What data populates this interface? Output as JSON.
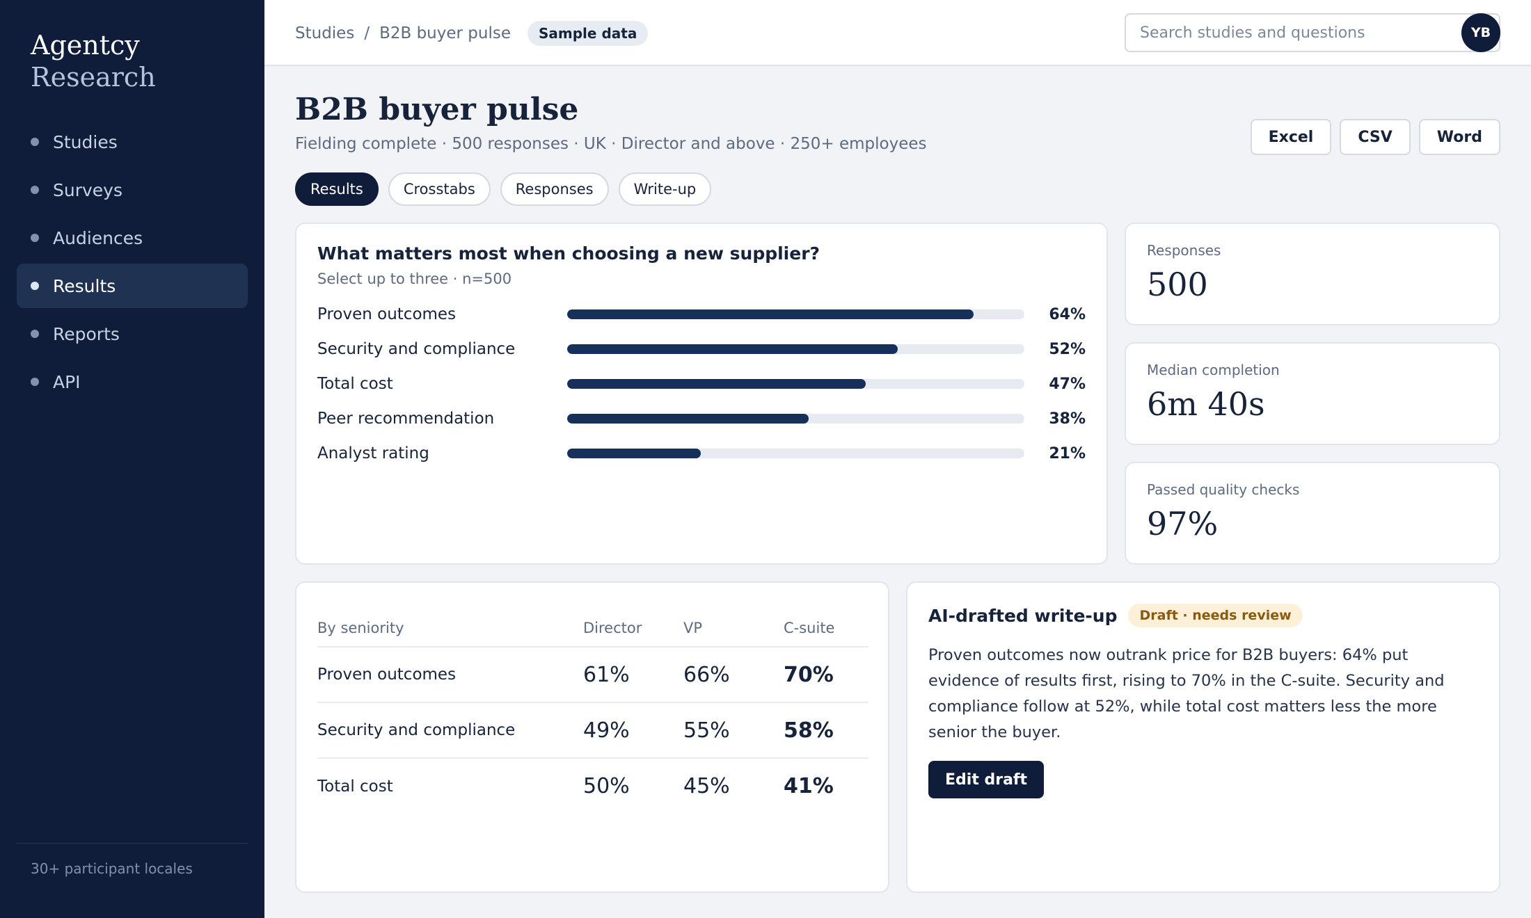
{
  "brand": {
    "line1": "Agentcy",
    "line2": "Research"
  },
  "sidebar": {
    "items": [
      {
        "label": "Studies"
      },
      {
        "label": "Surveys"
      },
      {
        "label": "Audiences"
      },
      {
        "label": "Results",
        "active": true
      },
      {
        "label": "Reports"
      },
      {
        "label": "API"
      }
    ],
    "footer": "30+ participant locales"
  },
  "topbar": {
    "breadcrumb": [
      "Studies",
      "B2B buyer pulse"
    ],
    "breadcrumb_sep": "/",
    "badge": "Sample data",
    "search_placeholder": "Search studies and questions",
    "avatar_initials": "YB"
  },
  "page": {
    "title": "B2B buyer pulse",
    "subtitle": "Fielding complete · 500 responses · UK · Director and above · 250+ employees",
    "exports": [
      "Excel",
      "CSV",
      "Word"
    ],
    "tabs": [
      {
        "label": "Results",
        "active": true
      },
      {
        "label": "Crosstabs"
      },
      {
        "label": "Responses"
      },
      {
        "label": "Write-up"
      }
    ]
  },
  "question": {
    "title": "What matters most when choosing a new supplier?",
    "sub": "Select up to three · n=500",
    "unit": "%"
  },
  "chart_data": {
    "type": "bar",
    "orientation": "horizontal",
    "categories": [
      "Proven outcomes",
      "Security and compliance",
      "Total cost",
      "Peer recommendation",
      "Analyst rating"
    ],
    "values": [
      64,
      52,
      47,
      38,
      21
    ],
    "labels": [
      "64%",
      "52%",
      "47%",
      "38%",
      "21%"
    ],
    "xlim": [
      0,
      72
    ],
    "bar_color": "#163059",
    "track_color": "#e7ebf1"
  },
  "stats": [
    {
      "label": "Responses",
      "value": "500"
    },
    {
      "label": "Median completion",
      "value": "6m 40s"
    },
    {
      "label": "Passed quality checks",
      "value": "97%"
    }
  ],
  "crosstab": {
    "headers": [
      "By seniority",
      "Director",
      "VP",
      "C-suite"
    ],
    "rows": [
      {
        "label": "Proven outcomes",
        "values": [
          "61%",
          "66%",
          "70%"
        ]
      },
      {
        "label": "Security and compliance",
        "values": [
          "49%",
          "55%",
          "58%"
        ]
      },
      {
        "label": "Total cost",
        "values": [
          "50%",
          "45%",
          "41%"
        ]
      }
    ]
  },
  "writeup": {
    "title": "AI-drafted write-up",
    "badge": "Draft · needs review",
    "body": "Proven outcomes now outrank price for B2B buyers: 64% put evidence of results first, rising to 70% in the C-suite. Security and compliance follow at 52%, while total cost matters less the more senior the buyer.",
    "button": "Edit draft"
  },
  "colors": {
    "sidebar_bg": "#0f1d3b",
    "accent": "#163059",
    "draft_badge_bg": "#fcf1d8",
    "draft_badge_text": "#8a5a0f"
  }
}
